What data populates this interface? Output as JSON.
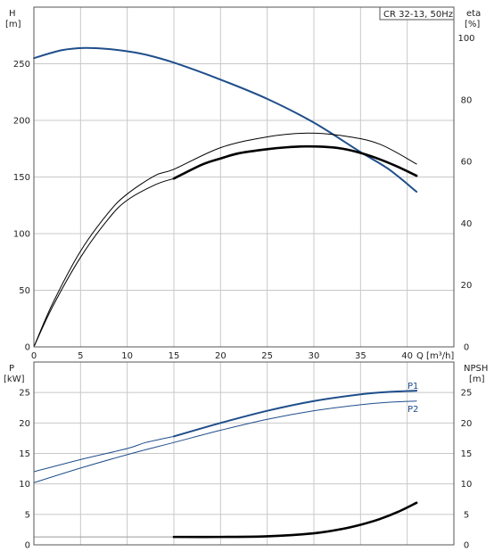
{
  "legend_box": "CR 32-13, 50Hz",
  "colors": {
    "blue": "#1f4e8a",
    "black": "#000000",
    "grid": "#c8c8c8"
  },
  "chart_data": [
    {
      "type": "line",
      "labels": {
        "left_top": "H",
        "left_unit": "[m]",
        "right_top": "eta",
        "right_unit": "[%]",
        "x_axis": "Q [m³/h]"
      },
      "xlim": [
        0,
        45
      ],
      "ylim_left": [
        0,
        300
      ],
      "ylim_right": [
        0,
        110
      ],
      "x_ticks": [
        0,
        5,
        10,
        15,
        20,
        25,
        30,
        35,
        40
      ],
      "y_ticks_left": [
        0,
        50,
        100,
        150,
        200,
        250
      ],
      "y_ticks_right": [
        0,
        20,
        40,
        60,
        80,
        100
      ],
      "series": [
        {
          "axis": "left",
          "color": "#1f4e8a",
          "width": 2,
          "x": [
            0,
            3,
            5.5,
            8,
            10,
            12,
            15,
            20,
            25,
            30,
            35,
            38,
            41
          ],
          "y": [
            255,
            262,
            264,
            263,
            261,
            258,
            251,
            236,
            219,
            198,
            172,
            157,
            137
          ]
        },
        {
          "axis": "right",
          "color": "#000000",
          "width": 1,
          "x": [
            0,
            2,
            5,
            8,
            10,
            13,
            15,
            20,
            25,
            29,
            33,
            37,
            41
          ],
          "y": [
            0,
            14,
            31,
            43.5,
            49.5,
            55.5,
            57.5,
            64.5,
            68,
            69.2,
            68.4,
            65.7,
            59.2
          ]
        },
        {
          "axis": "right",
          "color": "#000000",
          "width": 1,
          "x": [
            0,
            2,
            5,
            8,
            10,
            13,
            15
          ],
          "y": [
            0,
            13,
            29,
            41.5,
            47.5,
            52.5,
            54.5
          ]
        },
        {
          "axis": "right",
          "color": "#000000",
          "width": 2.6,
          "x": [
            15,
            18,
            20,
            22,
            25,
            27,
            29,
            31,
            33,
            35,
            37,
            39,
            41
          ],
          "y": [
            54.5,
            59,
            61,
            62.7,
            64,
            64.6,
            64.9,
            64.8,
            64.2,
            62.8,
            60.8,
            58.3,
            55.4
          ]
        }
      ]
    },
    {
      "type": "line",
      "labels": {
        "left_top": "P",
        "left_unit": "[kW]",
        "right_top": "NPSH",
        "right_unit": "[m]",
        "p1": "P1",
        "p2": "P2"
      },
      "xlim": [
        0,
        45
      ],
      "ylim_left": [
        0,
        30
      ],
      "ylim_right": [
        0,
        30
      ],
      "x_ticks": [
        0,
        5,
        10,
        15,
        20,
        25,
        30,
        35,
        40
      ],
      "y_ticks_left": [
        0,
        5,
        10,
        15,
        20,
        25
      ],
      "y_ticks_right": [
        0,
        5,
        10,
        15,
        20,
        25
      ],
      "series": [
        {
          "name": "P1",
          "axis": "left",
          "color": "#1f4e8a",
          "width": 1,
          "x": [
            0,
            5,
            10,
            12,
            15
          ],
          "y": [
            12,
            14,
            15.8,
            16.8,
            17.8
          ]
        },
        {
          "name": "P1",
          "axis": "left",
          "color": "#1f4e8a",
          "width": 2,
          "x": [
            15,
            20,
            25,
            30,
            35,
            38,
            41
          ],
          "y": [
            17.8,
            20,
            22,
            23.6,
            24.7,
            25.1,
            25.3
          ]
        },
        {
          "name": "P2",
          "axis": "left",
          "color": "#1f4e8a",
          "width": 1,
          "x": [
            0,
            5,
            10,
            15,
            20,
            25,
            30,
            35,
            38,
            41
          ],
          "y": [
            10.2,
            12.6,
            14.8,
            16.8,
            18.8,
            20.6,
            22,
            23,
            23.4,
            23.6
          ]
        },
        {
          "axis": "right",
          "color": "#9a9a9a",
          "width": 1,
          "x": [
            0,
            15
          ],
          "y": [
            1.3,
            1.3
          ]
        },
        {
          "axis": "right",
          "color": "#000000",
          "width": 2.6,
          "x": [
            15,
            20,
            25,
            30,
            33,
            35,
            37,
            39,
            41
          ],
          "y": [
            1.3,
            1.3,
            1.4,
            1.9,
            2.6,
            3.3,
            4.2,
            5.4,
            6.9
          ]
        }
      ]
    }
  ]
}
